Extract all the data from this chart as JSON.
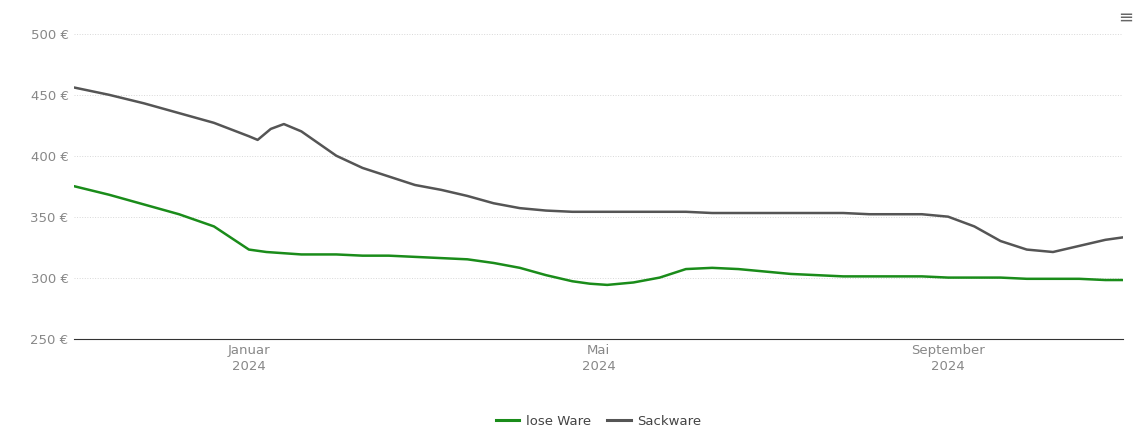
{
  "background_color": "#ffffff",
  "plot_bg_color": "#ffffff",
  "grid_color": "#d8d8d8",
  "ylim": [
    250,
    510
  ],
  "yticks": [
    250,
    300,
    350,
    400,
    450,
    500
  ],
  "ylabel_format": "{} €",
  "x_tick_labels": [
    "Januar\n2024",
    "Mai\n2024",
    "September\n2024"
  ],
  "x_tick_positions": [
    2,
    6,
    10
  ],
  "legend_labels": [
    "lose Ware",
    "Sackware"
  ],
  "legend_colors": [
    "#1a8c1a",
    "#555555"
  ],
  "lose_ware": {
    "color": "#1a8c1a",
    "linewidth": 1.8,
    "x": [
      0,
      0.4,
      0.8,
      1.2,
      1.6,
      2.0,
      2.2,
      2.4,
      2.6,
      2.8,
      3.0,
      3.3,
      3.6,
      3.9,
      4.2,
      4.5,
      4.8,
      5.1,
      5.4,
      5.7,
      5.9,
      6.1,
      6.4,
      6.7,
      7.0,
      7.3,
      7.6,
      7.9,
      8.2,
      8.5,
      8.8,
      9.1,
      9.4,
      9.7,
      10.0,
      10.3,
      10.6,
      10.9,
      11.2,
      11.5,
      11.8,
      12.0
    ],
    "y": [
      375,
      368,
      360,
      352,
      342,
      323,
      321,
      320,
      319,
      319,
      319,
      318,
      318,
      317,
      316,
      315,
      312,
      308,
      302,
      297,
      295,
      294,
      296,
      300,
      307,
      308,
      307,
      305,
      303,
      302,
      301,
      301,
      301,
      301,
      300,
      300,
      300,
      299,
      299,
      299,
      298,
      298
    ]
  },
  "sackware": {
    "color": "#555555",
    "linewidth": 1.8,
    "x": [
      0,
      0.4,
      0.8,
      1.2,
      1.6,
      2.0,
      2.1,
      2.25,
      2.4,
      2.6,
      2.8,
      3.0,
      3.3,
      3.6,
      3.9,
      4.2,
      4.5,
      4.8,
      5.1,
      5.4,
      5.7,
      5.9,
      6.1,
      6.4,
      6.7,
      7.0,
      7.3,
      7.6,
      7.9,
      8.2,
      8.5,
      8.8,
      9.1,
      9.4,
      9.7,
      10.0,
      10.3,
      10.6,
      10.9,
      11.2,
      11.5,
      11.8,
      12.0
    ],
    "y": [
      456,
      450,
      443,
      435,
      427,
      416,
      413,
      422,
      426,
      420,
      410,
      400,
      390,
      383,
      376,
      372,
      367,
      361,
      357,
      355,
      354,
      354,
      354,
      354,
      354,
      354,
      353,
      353,
      353,
      353,
      353,
      353,
      352,
      352,
      352,
      350,
      342,
      330,
      323,
      321,
      326,
      331,
      333
    ]
  }
}
